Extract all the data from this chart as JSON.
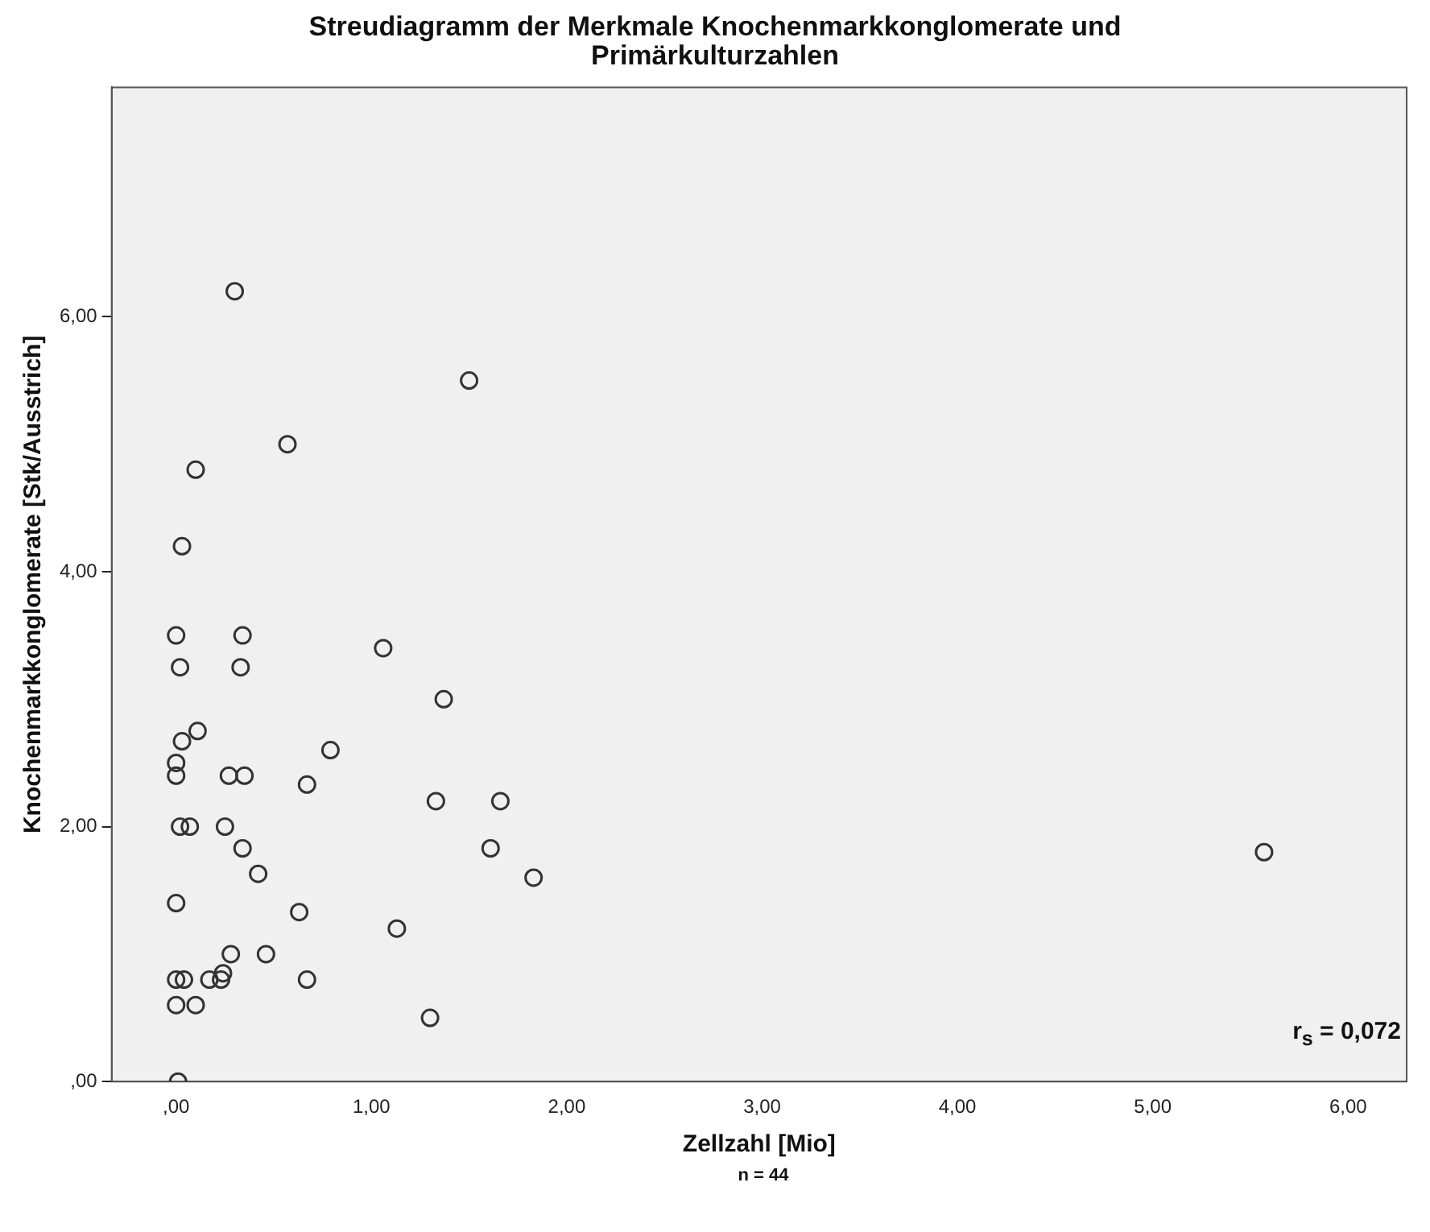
{
  "chart_data": {
    "type": "scatter",
    "title": "Streudiagramm der Merkmale Knochenmarkkonglomerate und Primärkulturzahlen",
    "xlabel": "Zellzahl [Mio]",
    "ylabel": "Knochenmarkkonglomerate [Stk/Ausstrich]",
    "annotations": [
      "r$_{s}$ = 0,072",
      "n = 44"
    ],
    "x": [
      0.3,
      1.5,
      0.57,
      0.1,
      0.03,
      0.0,
      0.34,
      0.02,
      0.33,
      1.06,
      1.37,
      0.03,
      0.11,
      0.0,
      0.0,
      0.27,
      0.35,
      0.79,
      0.67,
      0.02,
      0.07,
      0.25,
      1.33,
      1.66,
      0.34,
      1.61,
      0.42,
      1.83,
      0.0,
      0.63,
      1.13,
      0.28,
      0.46,
      0.0,
      0.04,
      0.17,
      0.23,
      0.24,
      0.67,
      0.0,
      0.1,
      1.3,
      0.01,
      5.57
    ],
    "series": [
      {
        "color": "#333333",
        "values": [
          6.2,
          5.5,
          5.0,
          4.8,
          4.2,
          3.5,
          3.5,
          3.25,
          3.25,
          3.4,
          3.0,
          2.67,
          2.75,
          2.5,
          2.4,
          2.4,
          2.4,
          2.6,
          2.33,
          2.0,
          2.0,
          2.0,
          2.2,
          2.2,
          1.83,
          1.83,
          1.63,
          1.6,
          1.4,
          1.33,
          1.2,
          1.0,
          1.0,
          0.8,
          0.8,
          0.8,
          0.8,
          0.85,
          0.8,
          0.6,
          0.6,
          0.5,
          0.0,
          1.8
        ]
      }
    ],
    "xlim": [
      -0.33,
      6.3
    ],
    "ylim": [
      0,
      7.8
    ],
    "xticks": [
      {
        "value": 0,
        "label": ",00"
      },
      {
        "value": 1,
        "label": "1,00"
      },
      {
        "value": 2,
        "label": "2,00"
      },
      {
        "value": 3,
        "label": "3,00"
      },
      {
        "value": 4,
        "label": "4,00"
      },
      {
        "value": 5,
        "label": "5,00"
      },
      {
        "value": 6,
        "label": "6,00"
      }
    ],
    "yticks": [
      {
        "value": 0,
        "label": ",00"
      },
      {
        "value": 2,
        "label": "2,00"
      },
      {
        "value": 4,
        "label": "4,00"
      },
      {
        "value": 6,
        "label": "6,00"
      }
    ],
    "marker": "circle",
    "grid": false,
    "legend": false
  }
}
